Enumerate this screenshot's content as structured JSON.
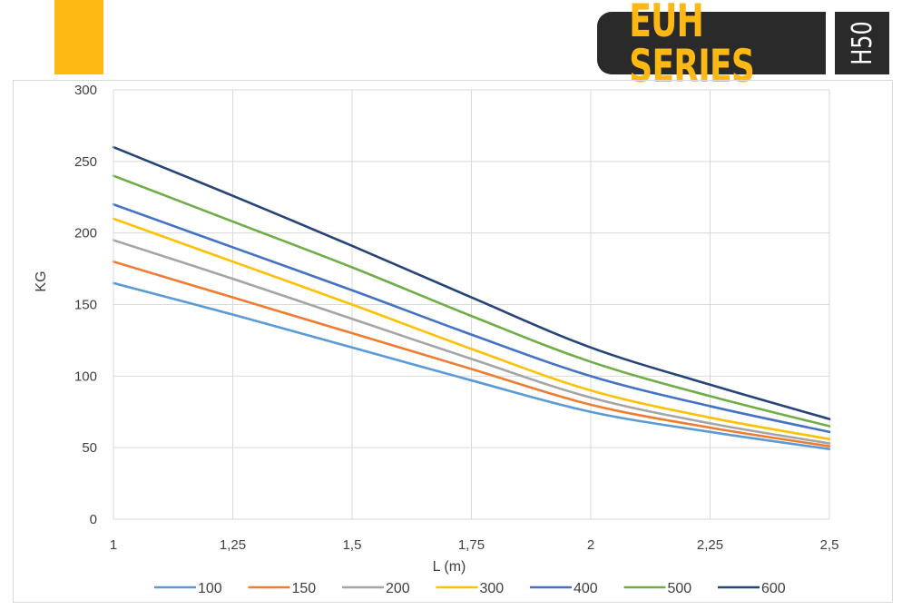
{
  "header": {
    "series_label": "EUH SERIES",
    "model_label": "H50",
    "accent_color": "#fdb813",
    "badge_color": "#2a2a2a"
  },
  "chart_data": {
    "type": "line",
    "xlabel": "L (m)",
    "ylabel": "KG",
    "x": [
      1,
      1.25,
      1.5,
      1.75,
      2,
      2.25,
      2.5
    ],
    "x_tick_labels": [
      "1",
      "1,25",
      "1,5",
      "1,75",
      "2",
      "2,25",
      "2,5"
    ],
    "ylim": [
      0,
      300
    ],
    "y_ticks": [
      0,
      50,
      100,
      150,
      200,
      250,
      300
    ],
    "grid": true,
    "legend_position": "bottom",
    "series": [
      {
        "name": "100",
        "color": "#5b9bd5",
        "values": [
          165,
          143,
          120,
          97,
          75,
          61,
          49
        ]
      },
      {
        "name": "150",
        "color": "#ed7d31",
        "values": [
          180,
          155,
          130,
          105,
          80,
          64,
          51
        ]
      },
      {
        "name": "200",
        "color": "#a5a5a5",
        "values": [
          195,
          168,
          140,
          112,
          85,
          67,
          53
        ]
      },
      {
        "name": "300",
        "color": "#ffc000",
        "values": [
          210,
          180,
          150,
          119,
          90,
          71,
          56
        ]
      },
      {
        "name": "400",
        "color": "#4472c4",
        "values": [
          220,
          190,
          160,
          129,
          100,
          79,
          61
        ]
      },
      {
        "name": "500",
        "color": "#70ad47",
        "values": [
          240,
          208,
          176,
          142,
          110,
          86,
          65
        ]
      },
      {
        "name": "600",
        "color": "#264478",
        "values": [
          260,
          226,
          191,
          155,
          120,
          94,
          70
        ]
      }
    ]
  }
}
